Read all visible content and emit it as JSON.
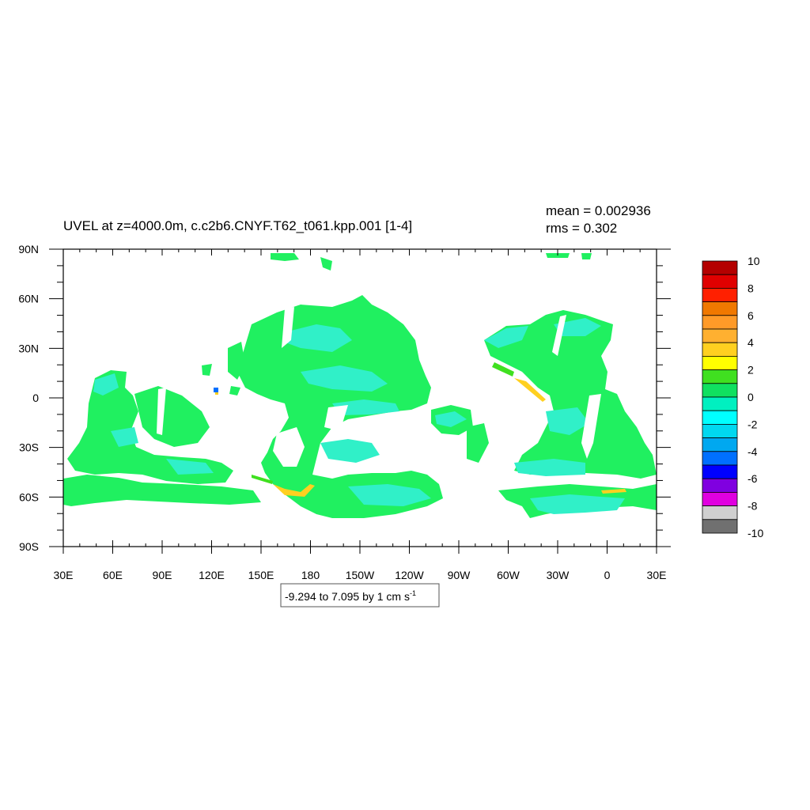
{
  "chart_data": {
    "type": "heatmap",
    "title": "UVEL at z=4000.0m, c.c2b6.CNYF.T62_t061.kpp.001 [1-4]",
    "stats": {
      "mean": "mean = 0.002936",
      "rms": "rms = 0.302"
    },
    "range_label": "-9.294 to 7.095 by 1 cm s",
    "range_label_sup": "-1",
    "x_ticks": [
      "30E",
      "60E",
      "90E",
      "120E",
      "150E",
      "180",
      "150W",
      "120W",
      "90W",
      "60W",
      "30W",
      "0",
      "30E"
    ],
    "y_ticks": [
      "90N",
      "60N",
      "30N",
      "0",
      "30S",
      "60S",
      "90S"
    ],
    "xlim": [
      30,
      390
    ],
    "ylim": [
      -90,
      90
    ],
    "colorbar": {
      "labels": [
        "10",
        "8",
        "6",
        "4",
        "2",
        "0",
        "-2",
        "-4",
        "-6",
        "-8",
        "-10"
      ],
      "levels": [
        10,
        9,
        8,
        7,
        6,
        5,
        4,
        3,
        2,
        1,
        0,
        -1,
        -2,
        -3,
        -4,
        -5,
        -6,
        -7,
        -8,
        -9,
        -10
      ],
      "colors": [
        "#b40000",
        "#e00000",
        "#ff2000",
        "#f07800",
        "#ff9a28",
        "#ffb030",
        "#ffd020",
        "#ffff00",
        "#40e020",
        "#10e060",
        "#00f0c0",
        "#00ffff",
        "#00d8f0",
        "#00a8f0",
        "#0070ff",
        "#0000ff",
        "#8000e0",
        "#e000e0",
        "#d0d0d0",
        "#707070"
      ]
    },
    "field_colors": {
      "main": "#20f060",
      "weak": "#30f0c8",
      "positive": "#ffd020"
    },
    "value_range": [
      -9.294,
      7.095
    ]
  }
}
